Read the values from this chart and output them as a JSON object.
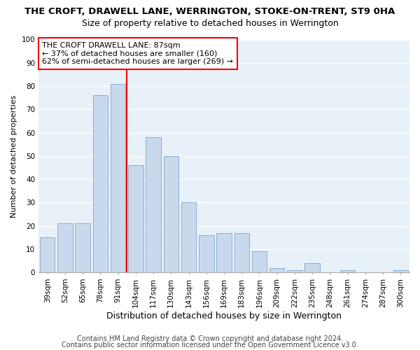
{
  "title": "THE CROFT, DRAWELL LANE, WERRINGTON, STOKE-ON-TRENT, ST9 0HA",
  "subtitle": "Size of property relative to detached houses in Werrington",
  "xlabel": "Distribution of detached houses by size in Werrington",
  "ylabel": "Number of detached properties",
  "categories": [
    "39sqm",
    "52sqm",
    "65sqm",
    "78sqm",
    "91sqm",
    "104sqm",
    "117sqm",
    "130sqm",
    "143sqm",
    "156sqm",
    "169sqm",
    "183sqm",
    "196sqm",
    "209sqm",
    "222sqm",
    "235sqm",
    "248sqm",
    "261sqm",
    "274sqm",
    "287sqm",
    "300sqm"
  ],
  "values": [
    15,
    21,
    21,
    76,
    81,
    46,
    58,
    50,
    30,
    16,
    17,
    17,
    9,
    2,
    1,
    4,
    0,
    1,
    0,
    0,
    1
  ],
  "bar_color": "#c9d9ed",
  "bar_edge_color": "#88afd0",
  "background_color": "#e8f0f8",
  "grid_color": "#ffffff",
  "vline_x": 4.5,
  "vline_color": "red",
  "annotation_text": "THE CROFT DRAWELL LANE: 87sqm\n← 37% of detached houses are smaller (160)\n62% of semi-detached houses are larger (269) →",
  "annotation_box_color": "white",
  "annotation_box_edge": "red",
  "ylim": [
    0,
    100
  ],
  "yticks": [
    0,
    10,
    20,
    30,
    40,
    50,
    60,
    70,
    80,
    90,
    100
  ],
  "footer1": "Contains HM Land Registry data © Crown copyright and database right 2024.",
  "footer2": "Contains public sector information licensed under the Open Government Licence v3.0.",
  "title_fontsize": 9.5,
  "subtitle_fontsize": 9,
  "xlabel_fontsize": 9,
  "ylabel_fontsize": 8,
  "tick_fontsize": 7.5,
  "annotation_fontsize": 8,
  "footer_fontsize": 7
}
